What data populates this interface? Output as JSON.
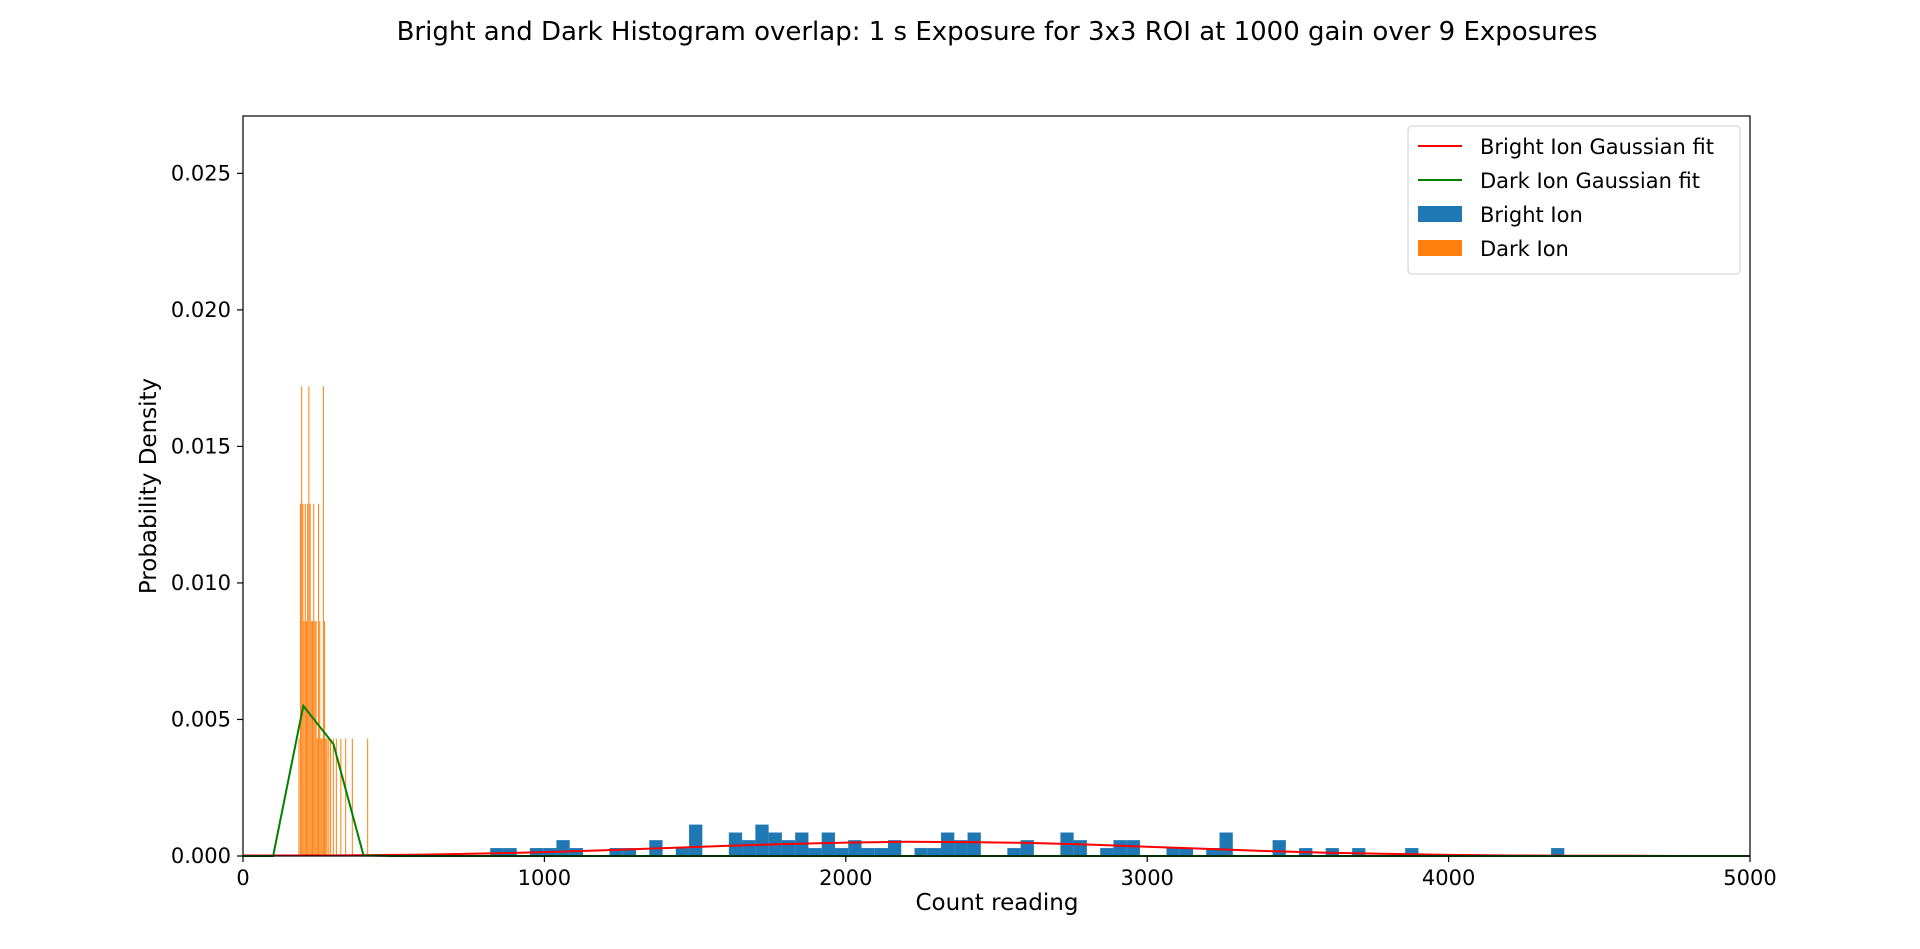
{
  "chart_data": {
    "type": "bar",
    "title": "Bright and Dark Histogram overlap: 1 s Exposure for 3x3 ROI at 1000 gain over 9 Exposures",
    "xlabel": "Count reading",
    "ylabel": "Probability Density",
    "xlim": [
      0,
      5000
    ],
    "ylim": [
      0,
      0.0271
    ],
    "xticks": [
      0,
      1000,
      2000,
      3000,
      4000,
      5000
    ],
    "xtick_labels": [
      "0",
      "1000",
      "2000",
      "3000",
      "4000",
      "5000"
    ],
    "yticks": [
      0,
      0.005,
      0.01,
      0.015,
      0.02,
      0.025
    ],
    "ytick_labels": [
      "0.000",
      "0.005",
      "0.010",
      "0.015",
      "0.020",
      "0.025"
    ],
    "grid": false,
    "legend_position": "upper right",
    "legend": [
      {
        "label": "Bright Ion Gaussian fit",
        "kind": "line",
        "color": "#ff0000"
      },
      {
        "label": "Dark Ion Gaussian fit",
        "kind": "line",
        "color": "#008000"
      },
      {
        "label": "Bright Ion",
        "kind": "patch",
        "color": "#1f77b4"
      },
      {
        "label": "Dark Ion",
        "kind": "patch",
        "color": "#ff7f0e"
      }
    ],
    "series": [
      {
        "name": "Bright Ion",
        "kind": "histogram",
        "color": "#1f77b4",
        "bin_width": 44,
        "bins": [
          {
            "x": 820,
            "y": 0.00029
          },
          {
            "x": 864,
            "y": 0.00029
          },
          {
            "x": 952,
            "y": 0.00029
          },
          {
            "x": 996,
            "y": 0.00029
          },
          {
            "x": 1040,
            "y": 0.00058
          },
          {
            "x": 1084,
            "y": 0.00029
          },
          {
            "x": 1216,
            "y": 0.00029
          },
          {
            "x": 1260,
            "y": 0.00029
          },
          {
            "x": 1348,
            "y": 0.00058
          },
          {
            "x": 1436,
            "y": 0.00029
          },
          {
            "x": 1480,
            "y": 0.00115
          },
          {
            "x": 1612,
            "y": 0.00086
          },
          {
            "x": 1656,
            "y": 0.00058
          },
          {
            "x": 1700,
            "y": 0.00115
          },
          {
            "x": 1744,
            "y": 0.00086
          },
          {
            "x": 1788,
            "y": 0.00058
          },
          {
            "x": 1832,
            "y": 0.00086
          },
          {
            "x": 1876,
            "y": 0.00029
          },
          {
            "x": 1920,
            "y": 0.00086
          },
          {
            "x": 1964,
            "y": 0.00029
          },
          {
            "x": 2008,
            "y": 0.00058
          },
          {
            "x": 2052,
            "y": 0.00029
          },
          {
            "x": 2096,
            "y": 0.00029
          },
          {
            "x": 2140,
            "y": 0.00058
          },
          {
            "x": 2228,
            "y": 0.00029
          },
          {
            "x": 2272,
            "y": 0.00029
          },
          {
            "x": 2316,
            "y": 0.00086
          },
          {
            "x": 2360,
            "y": 0.00058
          },
          {
            "x": 2404,
            "y": 0.00086
          },
          {
            "x": 2536,
            "y": 0.00029
          },
          {
            "x": 2580,
            "y": 0.00058
          },
          {
            "x": 2712,
            "y": 0.00086
          },
          {
            "x": 2756,
            "y": 0.00058
          },
          {
            "x": 2844,
            "y": 0.00029
          },
          {
            "x": 2888,
            "y": 0.00058
          },
          {
            "x": 2932,
            "y": 0.00058
          },
          {
            "x": 3064,
            "y": 0.00029
          },
          {
            "x": 3108,
            "y": 0.00029
          },
          {
            "x": 3196,
            "y": 0.00029
          },
          {
            "x": 3240,
            "y": 0.00086
          },
          {
            "x": 3416,
            "y": 0.00058
          },
          {
            "x": 3504,
            "y": 0.00029
          },
          {
            "x": 3592,
            "y": 0.00029
          },
          {
            "x": 3680,
            "y": 0.00029
          },
          {
            "x": 3856,
            "y": 0.00029
          },
          {
            "x": 4340,
            "y": 0.00029
          }
        ]
      },
      {
        "name": "Dark Ion",
        "kind": "histogram",
        "color": "#ff7f0e",
        "bin_width": 2.5,
        "bins": [
          {
            "x": 184,
            "y": 0.0043
          },
          {
            "x": 189,
            "y": 0.0129
          },
          {
            "x": 193,
            "y": 0.0172
          },
          {
            "x": 197,
            "y": 0.0129
          },
          {
            "x": 201,
            "y": 0.0086
          },
          {
            "x": 205,
            "y": 0.0129
          },
          {
            "x": 209,
            "y": 0.0086
          },
          {
            "x": 213,
            "y": 0.0129
          },
          {
            "x": 217,
            "y": 0.0172
          },
          {
            "x": 221,
            "y": 0.0129
          },
          {
            "x": 225,
            "y": 0.0086
          },
          {
            "x": 229,
            "y": 0.0086
          },
          {
            "x": 233,
            "y": 0.0129
          },
          {
            "x": 237,
            "y": 0.0086
          },
          {
            "x": 241,
            "y": 0.0086
          },
          {
            "x": 245,
            "y": 0.0043
          },
          {
            "x": 249,
            "y": 0.0129
          },
          {
            "x": 253,
            "y": 0.0086
          },
          {
            "x": 257,
            "y": 0.0043
          },
          {
            "x": 261,
            "y": 0.0043
          },
          {
            "x": 265,
            "y": 0.0172
          },
          {
            "x": 269,
            "y": 0.0086
          },
          {
            "x": 273,
            "y": 0.0043
          },
          {
            "x": 277,
            "y": 0.0043
          },
          {
            "x": 283,
            "y": 0.0043
          },
          {
            "x": 289,
            "y": 0.0043
          },
          {
            "x": 298,
            "y": 0.0043
          },
          {
            "x": 308,
            "y": 0.0043
          },
          {
            "x": 323,
            "y": 0.0043
          },
          {
            "x": 339,
            "y": 0.0043
          },
          {
            "x": 361,
            "y": 0.0043
          },
          {
            "x": 412,
            "y": 0.0043
          }
        ]
      },
      {
        "name": "Bright Ion Gaussian fit",
        "kind": "line",
        "color": "#ff0000",
        "x": [
          0,
          100,
          200,
          300,
          400,
          600,
          800,
          1000,
          1200,
          1400,
          1600,
          1800,
          2000,
          2200,
          2400,
          2600,
          2800,
          3000,
          3200,
          3400,
          3600,
          3800,
          4000,
          4200,
          4400,
          4600,
          4800,
          5000
        ],
        "y": [
          2e-05,
          2e-05,
          2e-05,
          2e-05,
          3e-05,
          5e-05,
          9e-05,
          0.00014,
          0.00021,
          0.00029,
          0.00037,
          0.00044,
          0.00049,
          0.00052,
          0.00051,
          0.00048,
          0.00042,
          0.00034,
          0.00026,
          0.00018,
          0.00012,
          8e-05,
          4e-05,
          2e-05,
          1e-05,
          1e-05,
          0.0,
          0.0
        ]
      },
      {
        "name": "Dark Ion Gaussian fit",
        "kind": "line",
        "color": "#008000",
        "x": [
          0,
          100,
          200,
          300,
          400,
          500,
          1000,
          2000,
          3000,
          4000,
          5000
        ],
        "y": [
          0.0,
          0.0,
          0.0055,
          0.0041,
          2e-05,
          0.0,
          0.0,
          0.0,
          0.0,
          0.0,
          0.0
        ]
      }
    ]
  }
}
